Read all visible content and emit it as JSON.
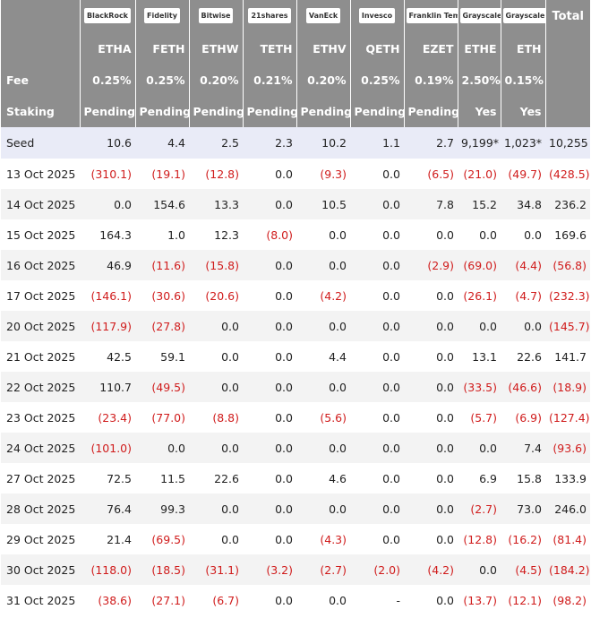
{
  "header": {
    "logos": [
      "BlackRock",
      "Fidelity",
      "Bitwise",
      "21shares",
      "VanEck",
      "Invesco",
      "Franklin Templeton",
      "Grayscale",
      "Grayscale"
    ],
    "total": "Total",
    "tickers": [
      "ETHA",
      "FETH",
      "ETHW",
      "TETH",
      "ETHV",
      "QETH",
      "EZET",
      "ETHE",
      "ETH"
    ]
  },
  "fee": {
    "label": "Fee",
    "values": [
      "0.25%",
      "0.25%",
      "0.20%",
      "0.21%",
      "0.20%",
      "0.25%",
      "0.19%",
      "2.50%",
      "0.15%"
    ]
  },
  "staking": {
    "label": "Staking",
    "values": [
      "Pending",
      "Pending",
      "Pending",
      "Pending",
      "Pending",
      "Pending",
      "Pending",
      "Yes",
      "Yes"
    ]
  },
  "rows": [
    {
      "label": "Seed",
      "values": [
        "10.6",
        "4.4",
        "2.5",
        "2.3",
        "10.2",
        "1.1",
        "2.7",
        "9,199*",
        "1,023*",
        "10,255"
      ]
    },
    {
      "label": "13 Oct 2025",
      "values": [
        "(310.1)",
        "(19.1)",
        "(12.8)",
        "0.0",
        "(9.3)",
        "0.0",
        "(6.5)",
        "(21.0)",
        "(49.7)",
        "(428.5)"
      ]
    },
    {
      "label": "14 Oct 2025",
      "values": [
        "0.0",
        "154.6",
        "13.3",
        "0.0",
        "10.5",
        "0.0",
        "7.8",
        "15.2",
        "34.8",
        "236.2"
      ]
    },
    {
      "label": "15 Oct 2025",
      "values": [
        "164.3",
        "1.0",
        "12.3",
        "(8.0)",
        "0.0",
        "0.0",
        "0.0",
        "0.0",
        "0.0",
        "169.6"
      ]
    },
    {
      "label": "16 Oct 2025",
      "values": [
        "46.9",
        "(11.6)",
        "(15.8)",
        "0.0",
        "0.0",
        "0.0",
        "(2.9)",
        "(69.0)",
        "(4.4)",
        "(56.8)"
      ]
    },
    {
      "label": "17 Oct 2025",
      "values": [
        "(146.1)",
        "(30.6)",
        "(20.6)",
        "0.0",
        "(4.2)",
        "0.0",
        "0.0",
        "(26.1)",
        "(4.7)",
        "(232.3)"
      ]
    },
    {
      "label": "20 Oct 2025",
      "values": [
        "(117.9)",
        "(27.8)",
        "0.0",
        "0.0",
        "0.0",
        "0.0",
        "0.0",
        "0.0",
        "0.0",
        "(145.7)"
      ]
    },
    {
      "label": "21 Oct 2025",
      "values": [
        "42.5",
        "59.1",
        "0.0",
        "0.0",
        "4.4",
        "0.0",
        "0.0",
        "13.1",
        "22.6",
        "141.7"
      ]
    },
    {
      "label": "22 Oct 2025",
      "values": [
        "110.7",
        "(49.5)",
        "0.0",
        "0.0",
        "0.0",
        "0.0",
        "0.0",
        "(33.5)",
        "(46.6)",
        "(18.9)"
      ]
    },
    {
      "label": "23 Oct 2025",
      "values": [
        "(23.4)",
        "(77.0)",
        "(8.8)",
        "0.0",
        "(5.6)",
        "0.0",
        "0.0",
        "(5.7)",
        "(6.9)",
        "(127.4)"
      ]
    },
    {
      "label": "24 Oct 2025",
      "values": [
        "(101.0)",
        "0.0",
        "0.0",
        "0.0",
        "0.0",
        "0.0",
        "0.0",
        "0.0",
        "7.4",
        "(93.6)"
      ]
    },
    {
      "label": "27 Oct 2025",
      "values": [
        "72.5",
        "11.5",
        "22.6",
        "0.0",
        "4.6",
        "0.0",
        "0.0",
        "6.9",
        "15.8",
        "133.9"
      ]
    },
    {
      "label": "28 Oct 2025",
      "values": [
        "76.4",
        "99.3",
        "0.0",
        "0.0",
        "0.0",
        "0.0",
        "0.0",
        "(2.7)",
        "73.0",
        "246.0"
      ]
    },
    {
      "label": "29 Oct 2025",
      "values": [
        "21.4",
        "(69.5)",
        "0.0",
        "0.0",
        "(4.3)",
        "0.0",
        "0.0",
        "(12.8)",
        "(16.2)",
        "(81.4)"
      ]
    },
    {
      "label": "30 Oct 2025",
      "values": [
        "(118.0)",
        "(18.5)",
        "(31.1)",
        "(3.2)",
        "(2.7)",
        "(2.0)",
        "(4.2)",
        "0.0",
        "(4.5)",
        "(184.2)"
      ]
    },
    {
      "label": "31 Oct 2025",
      "values": [
        "(38.6)",
        "(27.1)",
        "(6.7)",
        "0.0",
        "0.0",
        "-",
        "0.0",
        "(13.7)",
        "(12.1)",
        "(98.2)"
      ]
    }
  ]
}
